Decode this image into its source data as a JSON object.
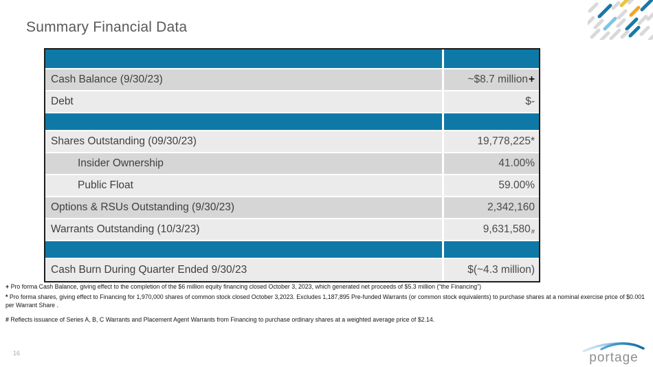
{
  "slide": {
    "title": "Summary Financial Data",
    "page_number": "16"
  },
  "colors": {
    "header_blue": "#0E79A7",
    "row_dark": "#D6D6D6",
    "row_light": "#EBEBEB",
    "label_text": "#3F3F3F",
    "value_text": "#4A4A4A",
    "title_gray": "#595959",
    "pagenum_gray": "#A8A8A8",
    "logo_gray": "#8E8E8E",
    "deco_gray": "#D9D9D9",
    "deco_blue": "#1878A8",
    "deco_light_blue": "#7FC4E4",
    "deco_orange": "#F5A12B",
    "deco_yellow": "#E8C53E"
  },
  "table": {
    "rows": [
      {
        "type": "header"
      },
      {
        "label": "Cash Balance (9/30/23)",
        "value": "~$8.7 million",
        "suffix": "+",
        "suffix_style": "bold",
        "shade": "dark"
      },
      {
        "label": "Debt",
        "value": "$-",
        "shade": "light"
      },
      {
        "type": "separator"
      },
      {
        "label": "Shares Outstanding (09/30/23)",
        "value": "19,778,225*",
        "shade": "light"
      },
      {
        "label": "Insider Ownership",
        "value": "41.00%",
        "shade": "dark",
        "indent": true
      },
      {
        "label": "Public Float",
        "value": "59.00%",
        "shade": "light",
        "indent": true
      },
      {
        "label": "Options & RSUs Outstanding (9/30/23)",
        "value": "2,342,160",
        "shade": "dark"
      },
      {
        "label": "Warrants Outstanding (10/3/23)",
        "value": "9,631,580",
        "suffix": "#",
        "suffix_style": "small",
        "shade": "light"
      },
      {
        "type": "separator"
      },
      {
        "label": "Cash Burn During Quarter Ended 9/30/23",
        "value": "$(~4.3 million)",
        "shade": "light"
      }
    ]
  },
  "footnotes": [
    {
      "marker": "+",
      "text": "Pro forma Cash Balance, giving effect to the completion of the $6 million equity financing closed October 3, 2023, which generated net proceeds of $5.3 million (“the Financing”)"
    },
    {
      "marker": "*",
      "text": "Pro forma shares, giving effect to Financing for 1,970,000 shares of common stock closed October 3,2023. Excludes 1,187,895 Pre-funded Warrants (or common stock equivalents) to purchase shares at a nominal exercise price of $0.001 per Warrant Share ."
    },
    {
      "marker": "#",
      "text": "Reflects issuance of Series A, B, C Warrants and Placement Agent Warrants from Financing to purchase ordinary shares at a weighted average price of $2.14."
    }
  ],
  "logo": {
    "text": "portage",
    "swoosh_icon": "arc-swoosh"
  }
}
